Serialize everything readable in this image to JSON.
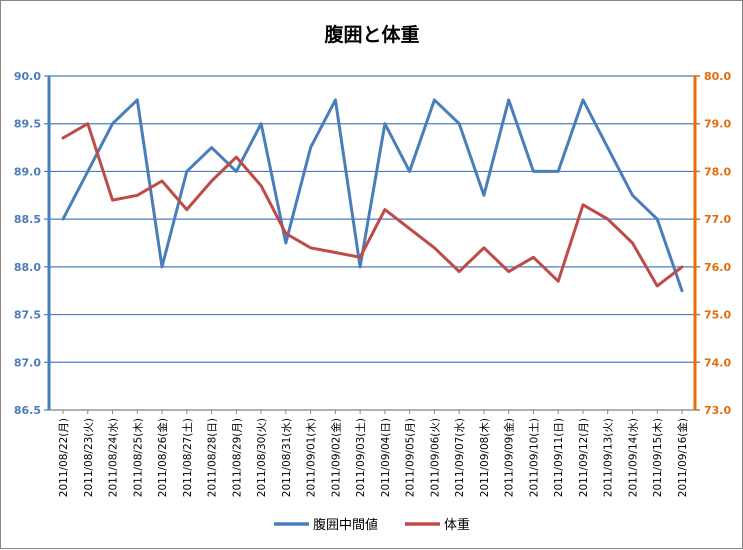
{
  "chart_data": {
    "type": "line",
    "title": "腹囲と体重",
    "categories": [
      "2011/08/22(月)",
      "2011/08/23(火)",
      "2011/08/24(水)",
      "2011/08/25(木)",
      "2011/08/26(金)",
      "2011/08/27(土)",
      "2011/08/28(日)",
      "2011/08/29(月)",
      "2011/08/30(火)",
      "2011/08/31(水)",
      "2011/09/01(木)",
      "2011/09/02(金)",
      "2011/09/03(土)",
      "2011/09/04(日)",
      "2011/09/05(月)",
      "2011/09/06(火)",
      "2011/09/07(水)",
      "2011/09/08(木)",
      "2011/09/09(金)",
      "2011/09/10(土)",
      "2011/09/11(日)",
      "2011/09/12(月)",
      "2011/09/13(火)",
      "2011/09/14(水)",
      "2011/09/15(木)",
      "2011/09/16(金)"
    ],
    "series": [
      {
        "name": "腹囲中間値",
        "axis": "left",
        "color": "#4a7ebb",
        "values": [
          88.5,
          89.0,
          89.5,
          89.75,
          88.0,
          89.0,
          89.25,
          89.0,
          89.5,
          88.25,
          89.25,
          89.75,
          88.0,
          89.5,
          89.0,
          89.75,
          89.5,
          88.75,
          89.75,
          89.0,
          89.0,
          89.75,
          89.25,
          88.75,
          88.5,
          87.75
        ]
      },
      {
        "name": "体重",
        "axis": "right",
        "color": "#be4b48",
        "values": [
          78.7,
          79.0,
          77.4,
          77.5,
          77.8,
          77.2,
          77.8,
          78.3,
          77.7,
          76.7,
          76.4,
          76.3,
          76.2,
          77.2,
          76.8,
          76.4,
          75.9,
          76.4,
          75.9,
          76.2,
          75.7,
          77.3,
          77.0,
          76.5,
          75.6,
          76.0
        ]
      }
    ],
    "y_left": {
      "min": 86.5,
      "max": 90.0,
      "step": 0.5,
      "tick_labels": [
        "86.5",
        "87.0",
        "87.5",
        "88.0",
        "88.5",
        "89.0",
        "89.5",
        "90.0"
      ],
      "color": "#4a7ebb"
    },
    "y_right": {
      "min": 73.0,
      "max": 80.0,
      "step": 1.0,
      "tick_labels": [
        "73.0",
        "74.0",
        "75.0",
        "76.0",
        "77.0",
        "78.0",
        "79.0",
        "80.0"
      ],
      "color": "#e46c0a"
    },
    "grid": true,
    "gridline_color": "#4a7ebb",
    "legend_position": "bottom"
  }
}
